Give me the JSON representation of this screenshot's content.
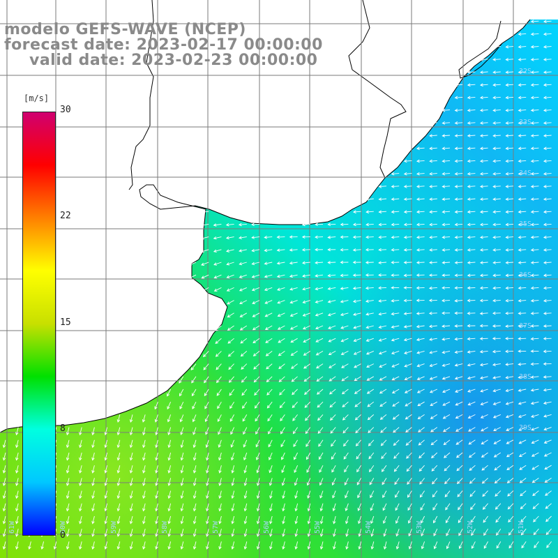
{
  "header": {
    "line1": "modelo GEFS-WAVE (NCEP)",
    "line2": "forecast date: 2023-02-17 00:00:00",
    "line3": "valid date: 2023-02-23 00:00:00"
  },
  "colorbar": {
    "unit": "[m/s]",
    "ticks": [
      "30",
      "22",
      "15",
      "8",
      "0"
    ],
    "colors": [
      "#0000ff",
      "#00c8ff",
      "#00ffe0",
      "#00e000",
      "#c8e000",
      "#ffff00",
      "#ff8000",
      "#ff0000",
      "#d00070"
    ]
  },
  "map": {
    "lat_labels": [
      "32S",
      "33S",
      "34S",
      "35S",
      "36S",
      "37S",
      "38S",
      "39S"
    ],
    "lon_labels": [
      "61W",
      "60W",
      "59W",
      "58W",
      "57W",
      "56W",
      "55W",
      "54W",
      "53W",
      "52W",
      "51W"
    ],
    "land_color": "#ffffff",
    "grid_color": "#7a7a7a",
    "arrow_color": "#ffffff"
  }
}
